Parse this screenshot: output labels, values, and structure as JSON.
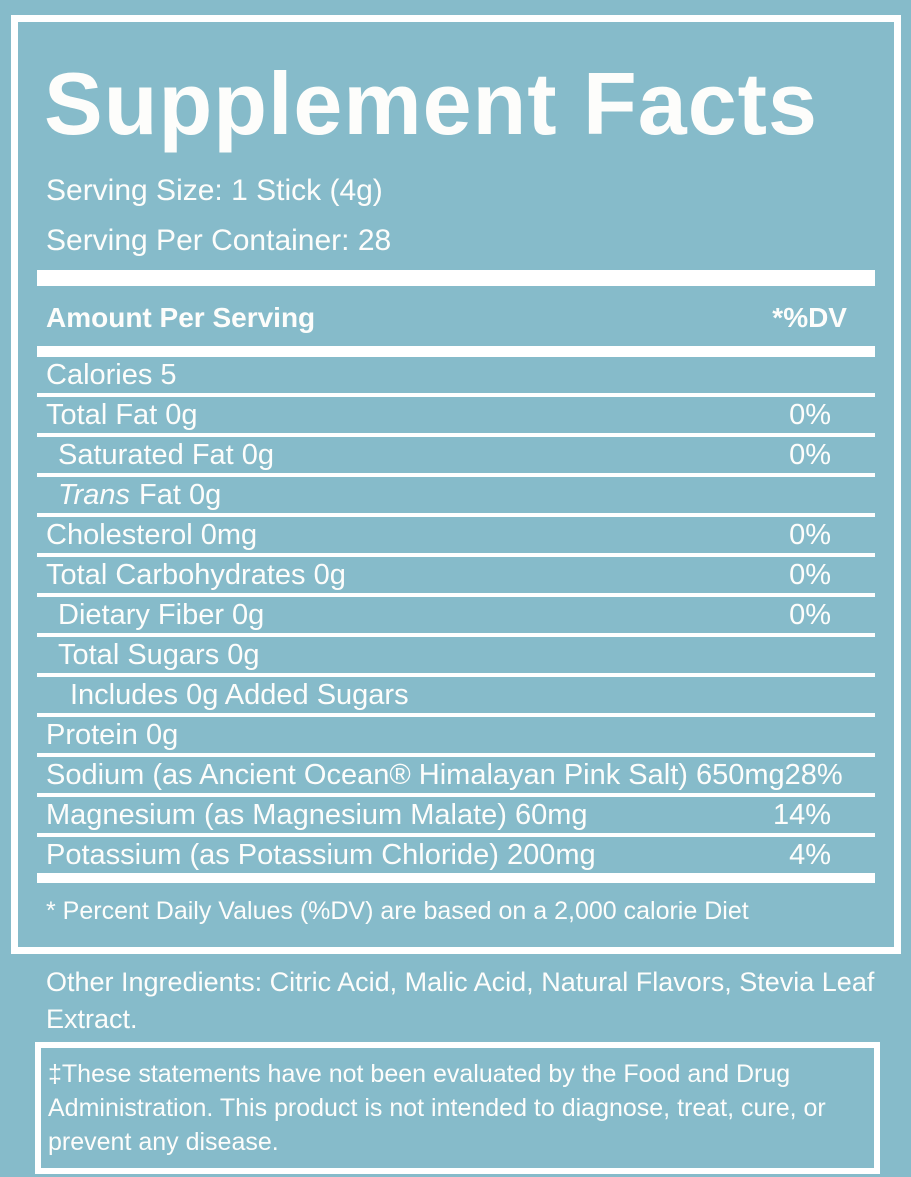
{
  "colors": {
    "background": "#86bbca",
    "text": "#ffffff",
    "rule_lines": "#ffffff"
  },
  "label": {
    "title": "Supplement Facts",
    "serving_size": "Serving Size: 1 Stick (4g)",
    "servings_per_container": "Serving Per Container: 28",
    "column_header": {
      "amount": "Amount Per Serving",
      "daily_value": "*%DV"
    },
    "rows": [
      {
        "label": "Calories 5",
        "dv": "",
        "indent": 0
      },
      {
        "label": "Total Fat 0g",
        "dv": "0%",
        "indent": 0
      },
      {
        "label": "Saturated Fat 0g",
        "dv": "0%",
        "indent": 1
      },
      {
        "label_italic": "Trans",
        "label": "Fat 0g",
        "dv": "",
        "indent": 1
      },
      {
        "label": "Cholesterol 0mg",
        "dv": "0%",
        "indent": 0
      },
      {
        "label": "Total Carbohydrates 0g",
        "dv": "0%",
        "indent": 0
      },
      {
        "label": "Dietary Fiber 0g",
        "dv": "0%",
        "indent": 1
      },
      {
        "label": "Total Sugars 0g",
        "dv": "",
        "indent": 1
      },
      {
        "label": "Includes 0g Added Sugars",
        "dv": "",
        "indent": 2
      },
      {
        "label": "Protein 0g",
        "dv": "",
        "indent": 0
      },
      {
        "label": "Sodium (as Ancient Ocean® Himalayan Pink Salt) 650mg",
        "dv": "28%",
        "indent": 0
      },
      {
        "label": "Magnesium (as Magnesium Malate) 60mg",
        "dv": "14%",
        "indent": 0
      },
      {
        "label": "Potassium (as Potassium Chloride) 200mg",
        "dv": "4%",
        "indent": 0
      }
    ],
    "footnote": "* Percent Daily Values (%DV) are based on a 2,000 calorie Diet"
  },
  "footer": {
    "other_ingredients_lines": [
      "Other Ingredients: Citric Acid, Malic Acid, Natural Flavors, Stevia Leaf",
      "Extract."
    ],
    "disclaimer_lines": [
      "‡These statements have not been evaluated by the Food and Drug",
      "Administration. This product is not intended to diagnose, treat, cure, or",
      "prevent any disease."
    ]
  }
}
